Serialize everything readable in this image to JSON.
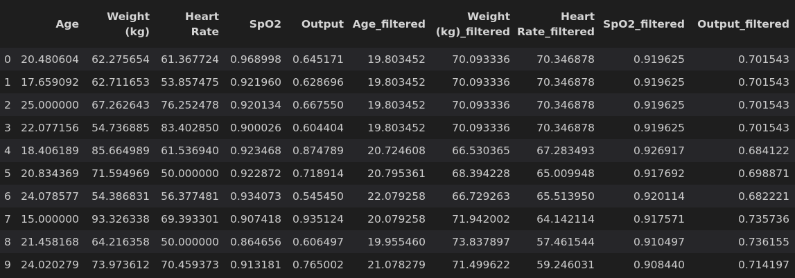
{
  "table": {
    "columns": [
      "Age",
      "Weight (kg)",
      "Heart Rate",
      "SpO2",
      "Output",
      "Age_filtered",
      "Weight (kg)_filtered",
      "Heart Rate_filtered",
      "SpO2_filtered",
      "Output_filtered"
    ],
    "rows": [
      {
        "index": "0",
        "cells": [
          "20.480604",
          "62.275654",
          "61.367724",
          "0.968998",
          "0.645171",
          "19.803452",
          "70.093336",
          "70.346878",
          "0.919625",
          "0.701543"
        ]
      },
      {
        "index": "1",
        "cells": [
          "17.659092",
          "62.711653",
          "53.857475",
          "0.921960",
          "0.628696",
          "19.803452",
          "70.093336",
          "70.346878",
          "0.919625",
          "0.701543"
        ]
      },
      {
        "index": "2",
        "cells": [
          "25.000000",
          "67.262643",
          "76.252478",
          "0.920134",
          "0.667550",
          "19.803452",
          "70.093336",
          "70.346878",
          "0.919625",
          "0.701543"
        ]
      },
      {
        "index": "3",
        "cells": [
          "22.077156",
          "54.736885",
          "83.402850",
          "0.900026",
          "0.604404",
          "19.803452",
          "70.093336",
          "70.346878",
          "0.919625",
          "0.701543"
        ]
      },
      {
        "index": "4",
        "cells": [
          "18.406189",
          "85.664989",
          "61.536940",
          "0.923468",
          "0.874789",
          "20.724608",
          "66.530365",
          "67.283493",
          "0.926917",
          "0.684122"
        ]
      },
      {
        "index": "5",
        "cells": [
          "20.834369",
          "71.594969",
          "50.000000",
          "0.922872",
          "0.718914",
          "20.795361",
          "68.394228",
          "65.009948",
          "0.917692",
          "0.698871"
        ]
      },
      {
        "index": "6",
        "cells": [
          "24.078577",
          "54.386831",
          "56.377481",
          "0.934073",
          "0.545450",
          "22.079258",
          "66.729263",
          "65.513950",
          "0.920114",
          "0.682221"
        ]
      },
      {
        "index": "7",
        "cells": [
          "15.000000",
          "93.326338",
          "69.393301",
          "0.907418",
          "0.935124",
          "20.079258",
          "71.942002",
          "64.142114",
          "0.917571",
          "0.735736"
        ]
      },
      {
        "index": "8",
        "cells": [
          "21.458168",
          "64.216358",
          "50.000000",
          "0.864656",
          "0.606497",
          "19.955460",
          "73.837897",
          "57.461544",
          "0.910497",
          "0.736155"
        ]
      },
      {
        "index": "9",
        "cells": [
          "24.020279",
          "73.973612",
          "70.459373",
          "0.913181",
          "0.765002",
          "21.078279",
          "71.499622",
          "59.246031",
          "0.908440",
          "0.714197"
        ]
      }
    ]
  }
}
